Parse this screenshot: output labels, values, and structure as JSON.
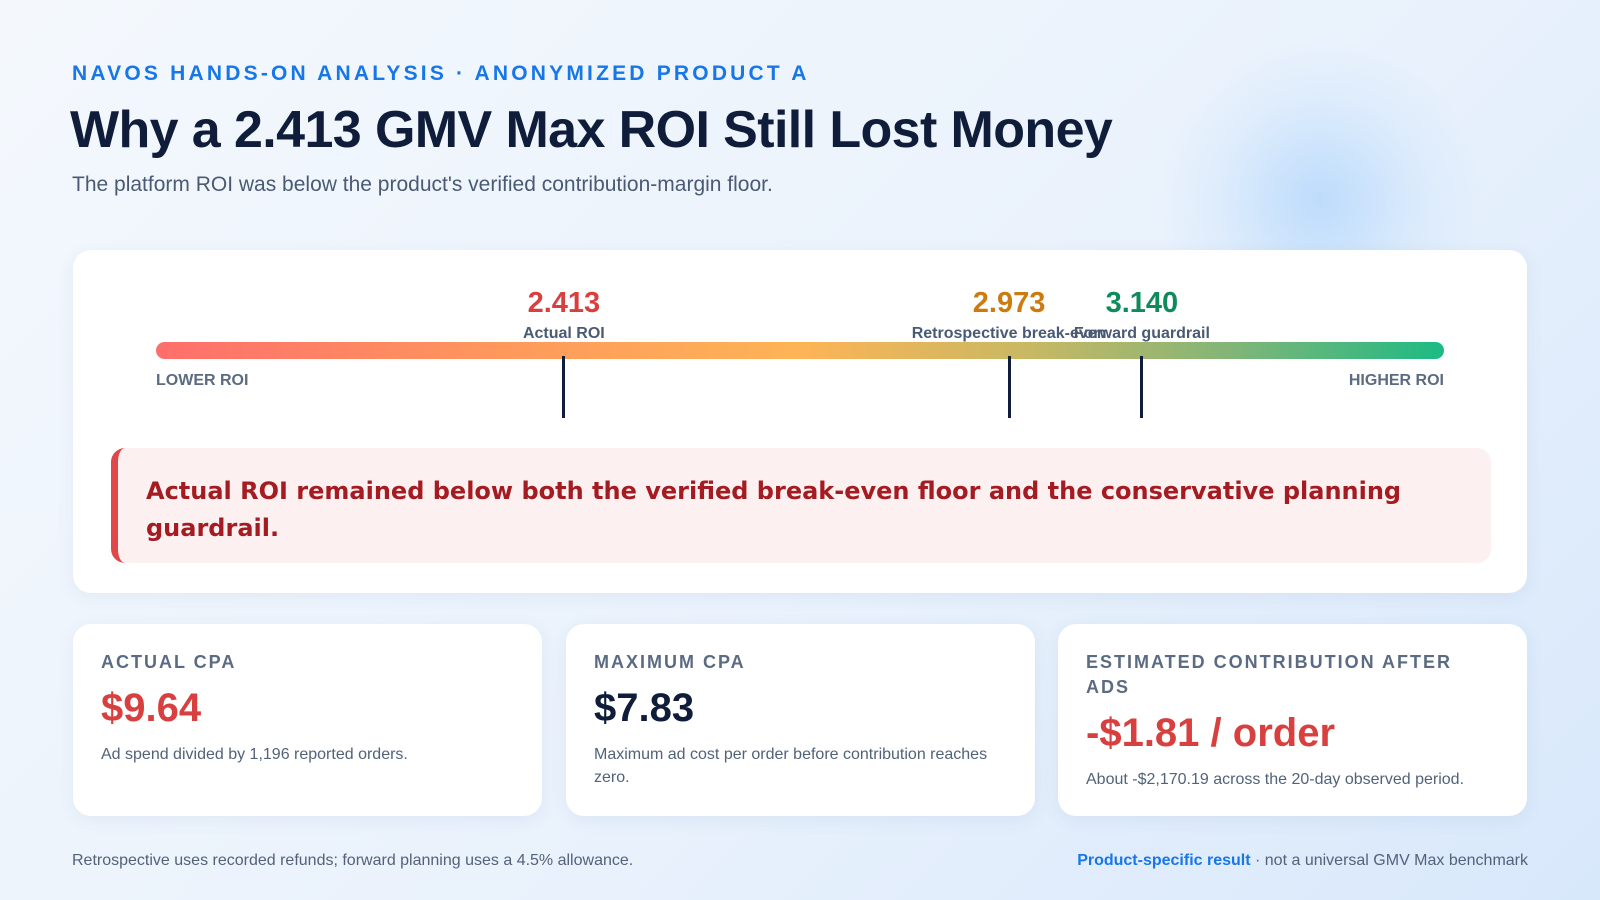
{
  "header": {
    "eyebrow": "NAVOS HANDS-ON ANALYSIS · ANONYMIZED PRODUCT A",
    "title": "Why a 2.413 GMV Max ROI Still Lost Money",
    "subtitle": "The platform ROI was below the product's verified contribution-margin floor."
  },
  "scale": {
    "low_label": "LOWER ROI",
    "high_label": "HIGHER ROI",
    "min": 1.9,
    "max": 3.52,
    "markers": [
      {
        "value": "2.413",
        "label": "Actual ROI",
        "color": "#d8403f"
      },
      {
        "value": "2.973",
        "label": "Retrospective break-even",
        "color": "#cd7a0f"
      },
      {
        "value": "3.140",
        "label": "Forward guardrail",
        "color": "#0f8a5b"
      }
    ]
  },
  "callout": {
    "text": "Actual ROI remained below both the verified break-even floor and the conservative planning guardrail."
  },
  "metrics": [
    {
      "label": "ACTUAL CPA",
      "value": "$9.64",
      "value_color": "#d8403f",
      "description": "Ad spend divided by 1,196 reported orders."
    },
    {
      "label": "MAXIMUM CPA",
      "value": "$7.83",
      "value_color": "#0f1d3a",
      "description": "Maximum ad cost per order before contribution reaches zero."
    },
    {
      "label": "ESTIMATED CONTRIBUTION AFTER ADS",
      "value": "-$1.81 / order",
      "value_color": "#d8403f",
      "description": "About -$2,170.19 across the 20-day observed period."
    }
  ],
  "footer": {
    "left": "Retrospective uses recorded refunds; forward planning uses a 4.5% allowance.",
    "right_strong": "Product-specific result",
    "right_rest": " · not a universal GMV Max benchmark"
  }
}
